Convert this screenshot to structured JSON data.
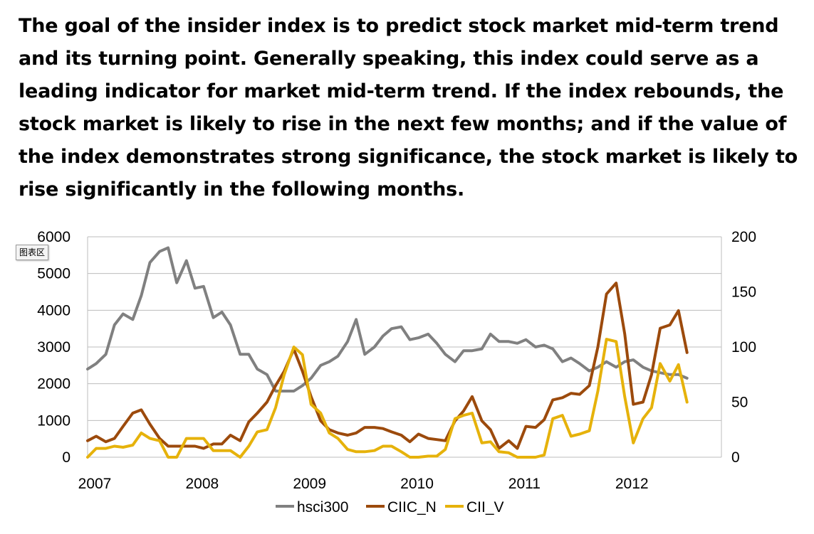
{
  "intro_text": "The goal of the insider index is to predict stock market mid-term trend and its turning point. Generally speaking, this index could serve as a leading indicator for market mid-term trend. If the index rebounds, the stock market is likely to rise in the next few months; and if the value of the index demonstrates strong significance, the stock market is likely to rise significantly in the following months.",
  "chart_area_badge": "图表区",
  "chart_data": {
    "type": "line",
    "title": "",
    "xlabel": "",
    "ylabel": "",
    "x_ticks": [
      "2007",
      "2008",
      "2009",
      "2010",
      "2011",
      "2012"
    ],
    "x_range": [
      2007,
      2012.9
    ],
    "y_left": {
      "range": [
        0,
        6000
      ],
      "ticks": [
        0,
        1000,
        2000,
        3000,
        4000,
        5000,
        6000
      ]
    },
    "y_right": {
      "range": [
        0,
        200
      ],
      "ticks": [
        0,
        50,
        100,
        150,
        200
      ]
    },
    "grid": true,
    "legend_position": "bottom",
    "series": [
      {
        "name": "hsci300",
        "axis": "left",
        "color": "#808080",
        "points": [
          [
            2007.0,
            2400
          ],
          [
            2007.08,
            2550
          ],
          [
            2007.17,
            2800
          ],
          [
            2007.25,
            3600
          ],
          [
            2007.33,
            3900
          ],
          [
            2007.42,
            3750
          ],
          [
            2007.5,
            4400
          ],
          [
            2007.58,
            5300
          ],
          [
            2007.67,
            5600
          ],
          [
            2007.75,
            5700
          ],
          [
            2007.83,
            4750
          ],
          [
            2007.92,
            5350
          ],
          [
            2008.0,
            4600
          ],
          [
            2008.08,
            4650
          ],
          [
            2008.17,
            3800
          ],
          [
            2008.25,
            3950
          ],
          [
            2008.33,
            3600
          ],
          [
            2008.42,
            2800
          ],
          [
            2008.5,
            2800
          ],
          [
            2008.58,
            2400
          ],
          [
            2008.67,
            2250
          ],
          [
            2008.75,
            1800
          ],
          [
            2008.83,
            1800
          ],
          [
            2008.92,
            1800
          ],
          [
            2009.0,
            1950
          ],
          [
            2009.08,
            2150
          ],
          [
            2009.17,
            2500
          ],
          [
            2009.25,
            2600
          ],
          [
            2009.33,
            2750
          ],
          [
            2009.42,
            3150
          ],
          [
            2009.5,
            3750
          ],
          [
            2009.58,
            2800
          ],
          [
            2009.67,
            3000
          ],
          [
            2009.75,
            3300
          ],
          [
            2009.83,
            3500
          ],
          [
            2009.92,
            3550
          ],
          [
            2010.0,
            3200
          ],
          [
            2010.08,
            3250
          ],
          [
            2010.17,
            3350
          ],
          [
            2010.25,
            3100
          ],
          [
            2010.33,
            2800
          ],
          [
            2010.42,
            2600
          ],
          [
            2010.5,
            2900
          ],
          [
            2010.58,
            2900
          ],
          [
            2010.67,
            2950
          ],
          [
            2010.75,
            3350
          ],
          [
            2010.83,
            3150
          ],
          [
            2010.92,
            3150
          ],
          [
            2011.0,
            3100
          ],
          [
            2011.08,
            3200
          ],
          [
            2011.17,
            3000
          ],
          [
            2011.25,
            3050
          ],
          [
            2011.33,
            2950
          ],
          [
            2011.42,
            2600
          ],
          [
            2011.5,
            2700
          ],
          [
            2011.58,
            2550
          ],
          [
            2011.67,
            2350
          ],
          [
            2011.75,
            2450
          ],
          [
            2011.83,
            2600
          ],
          [
            2011.92,
            2450
          ],
          [
            2012.0,
            2600
          ],
          [
            2012.08,
            2650
          ],
          [
            2012.17,
            2450
          ],
          [
            2012.25,
            2350
          ],
          [
            2012.33,
            2300
          ],
          [
            2012.42,
            2250
          ],
          [
            2012.5,
            2250
          ],
          [
            2012.58,
            2150
          ]
        ]
      },
      {
        "name": "CIIC_N",
        "axis": "right",
        "color": "#9C4A0C",
        "points": [
          [
            2007.0,
            15
          ],
          [
            2007.08,
            19
          ],
          [
            2007.17,
            14
          ],
          [
            2007.25,
            17
          ],
          [
            2007.33,
            28
          ],
          [
            2007.42,
            40
          ],
          [
            2007.5,
            43
          ],
          [
            2007.58,
            30
          ],
          [
            2007.67,
            17
          ],
          [
            2007.75,
            10
          ],
          [
            2007.83,
            10
          ],
          [
            2007.92,
            10
          ],
          [
            2008.0,
            10
          ],
          [
            2008.08,
            8
          ],
          [
            2008.17,
            12
          ],
          [
            2008.25,
            12
          ],
          [
            2008.33,
            20
          ],
          [
            2008.42,
            15
          ],
          [
            2008.5,
            32
          ],
          [
            2008.58,
            40
          ],
          [
            2008.67,
            50
          ],
          [
            2008.75,
            65
          ],
          [
            2008.83,
            78
          ],
          [
            2008.92,
            98
          ],
          [
            2009.0,
            78
          ],
          [
            2009.08,
            55
          ],
          [
            2009.17,
            33
          ],
          [
            2009.25,
            25
          ],
          [
            2009.33,
            22
          ],
          [
            2009.42,
            20
          ],
          [
            2009.5,
            22
          ],
          [
            2009.58,
            27
          ],
          [
            2009.67,
            27
          ],
          [
            2009.75,
            26
          ],
          [
            2009.83,
            23
          ],
          [
            2009.92,
            20
          ],
          [
            2010.0,
            14
          ],
          [
            2010.08,
            21
          ],
          [
            2010.17,
            17
          ],
          [
            2010.25,
            16
          ],
          [
            2010.33,
            15
          ],
          [
            2010.42,
            33
          ],
          [
            2010.5,
            42
          ],
          [
            2010.58,
            55
          ],
          [
            2010.67,
            33
          ],
          [
            2010.75,
            25
          ],
          [
            2010.83,
            8
          ],
          [
            2010.92,
            15
          ],
          [
            2011.0,
            8
          ],
          [
            2011.08,
            28
          ],
          [
            2011.17,
            27
          ],
          [
            2011.25,
            34
          ],
          [
            2011.33,
            52
          ],
          [
            2011.42,
            54
          ],
          [
            2011.5,
            58
          ],
          [
            2011.58,
            57
          ],
          [
            2011.67,
            65
          ],
          [
            2011.75,
            100
          ],
          [
            2011.83,
            148
          ],
          [
            2011.92,
            158
          ],
          [
            2012.0,
            112
          ],
          [
            2012.08,
            48
          ],
          [
            2012.17,
            50
          ],
          [
            2012.25,
            75
          ],
          [
            2012.33,
            117
          ],
          [
            2012.42,
            120
          ],
          [
            2012.5,
            133
          ],
          [
            2012.58,
            95
          ]
        ]
      },
      {
        "name": "CII_V",
        "axis": "right",
        "color": "#E6B20B",
        "points": [
          [
            2007.0,
            0
          ],
          [
            2007.08,
            8
          ],
          [
            2007.17,
            8
          ],
          [
            2007.25,
            10
          ],
          [
            2007.33,
            9
          ],
          [
            2007.42,
            11
          ],
          [
            2007.5,
            22
          ],
          [
            2007.58,
            17
          ],
          [
            2007.67,
            15
          ],
          [
            2007.75,
            0
          ],
          [
            2007.83,
            0
          ],
          [
            2007.92,
            17
          ],
          [
            2008.0,
            17
          ],
          [
            2008.08,
            17
          ],
          [
            2008.17,
            6
          ],
          [
            2008.25,
            6
          ],
          [
            2008.33,
            6
          ],
          [
            2008.42,
            0
          ],
          [
            2008.5,
            10
          ],
          [
            2008.58,
            23
          ],
          [
            2008.67,
            25
          ],
          [
            2008.75,
            45
          ],
          [
            2008.83,
            75
          ],
          [
            2008.92,
            100
          ],
          [
            2009.0,
            93
          ],
          [
            2009.08,
            48
          ],
          [
            2009.17,
            40
          ],
          [
            2009.25,
            22
          ],
          [
            2009.33,
            17
          ],
          [
            2009.42,
            7
          ],
          [
            2009.5,
            5
          ],
          [
            2009.58,
            5
          ],
          [
            2009.67,
            6
          ],
          [
            2009.75,
            10
          ],
          [
            2009.83,
            10
          ],
          [
            2009.92,
            5
          ],
          [
            2010.0,
            0
          ],
          [
            2010.08,
            0
          ],
          [
            2010.17,
            1
          ],
          [
            2010.25,
            1
          ],
          [
            2010.33,
            7
          ],
          [
            2010.42,
            35
          ],
          [
            2010.5,
            38
          ],
          [
            2010.58,
            40
          ],
          [
            2010.67,
            13
          ],
          [
            2010.75,
            14
          ],
          [
            2010.83,
            5
          ],
          [
            2010.92,
            4
          ],
          [
            2011.0,
            0
          ],
          [
            2011.08,
            0
          ],
          [
            2011.17,
            0
          ],
          [
            2011.25,
            2
          ],
          [
            2011.33,
            35
          ],
          [
            2011.42,
            38
          ],
          [
            2011.5,
            19
          ],
          [
            2011.58,
            21
          ],
          [
            2011.67,
            24
          ],
          [
            2011.75,
            60
          ],
          [
            2011.83,
            107
          ],
          [
            2011.92,
            105
          ],
          [
            2012.0,
            55
          ],
          [
            2012.08,
            13
          ],
          [
            2012.17,
            35
          ],
          [
            2012.25,
            45
          ],
          [
            2012.33,
            85
          ],
          [
            2012.42,
            69
          ],
          [
            2012.5,
            84
          ],
          [
            2012.58,
            50
          ]
        ]
      }
    ]
  }
}
